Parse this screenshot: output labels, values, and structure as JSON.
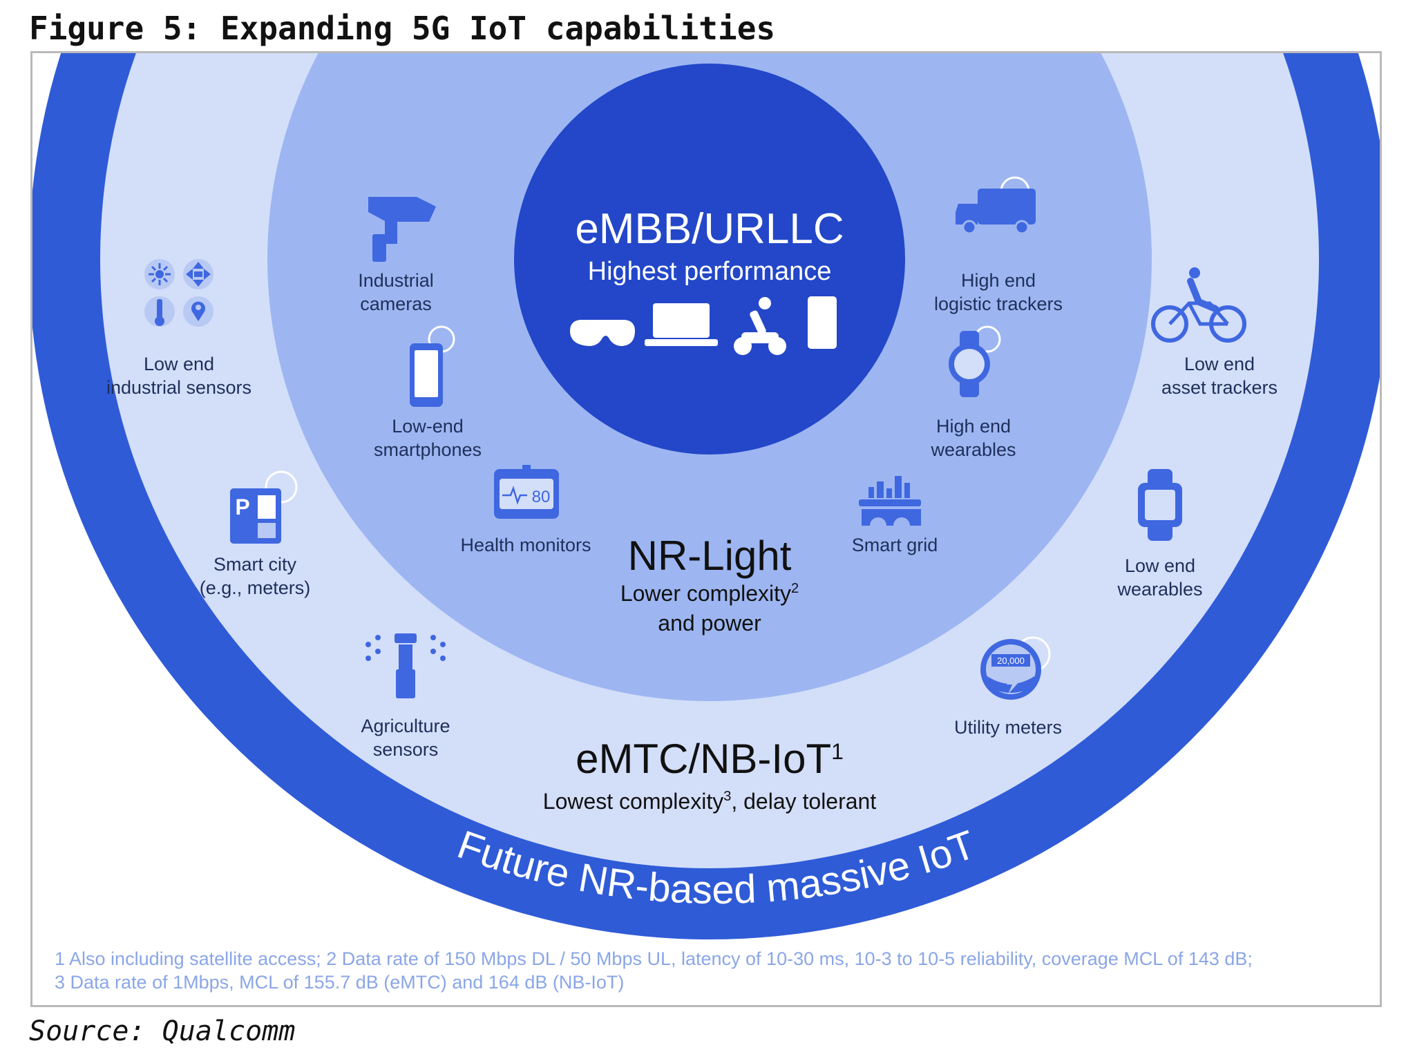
{
  "figure_title": "Figure 5: Expanding 5G IoT capabilities",
  "source": "Source: Qualcomm",
  "colors": {
    "outer_ring": "#2f5bd7",
    "outer_zone": "#d3def9",
    "middle_zone": "#9db6f2",
    "core": "#2347c8",
    "icon": "#3f67e0",
    "footnote": "#8aa6e6"
  },
  "core": {
    "title": "eMBB/URLLC",
    "subtitle": "Highest performance",
    "icons": [
      "vr-glasses-icon",
      "laptop-icon",
      "robot-arm-icon",
      "tablet-icon"
    ]
  },
  "middle": {
    "title": "NR-Light",
    "subtitle_line1": "Lower complexity",
    "subtitle_line1_sup": "2",
    "subtitle_line2": "and power",
    "items": [
      {
        "icon": "security-camera-icon",
        "line1": "Industrial",
        "line2": "cameras"
      },
      {
        "icon": "smartphone-icon",
        "line1": "Low-end",
        "line2": "smartphones"
      },
      {
        "icon": "health-monitor-icon",
        "line1": "Health monitors",
        "line2": "",
        "monitor_reading": "80"
      },
      {
        "icon": "delivery-truck-icon",
        "line1": "High end",
        "line2": "logistic trackers"
      },
      {
        "icon": "smartwatch-icon",
        "line1": "High end",
        "line2": "wearables"
      },
      {
        "icon": "smart-grid-icon",
        "line1": "Smart grid",
        "line2": ""
      }
    ]
  },
  "outer": {
    "title": "eMTC/NB-IoT",
    "title_sup": "1",
    "subtitle_a": "Lowest complexity",
    "subtitle_sup": "3",
    "subtitle_b": ", delay tolerant",
    "items": [
      {
        "icon": "industrial-sensors-icon",
        "line1": "Low end",
        "line2": "industrial sensors"
      },
      {
        "icon": "parking-meter-icon",
        "line1": "Smart city",
        "line2": "(e.g., meters)"
      },
      {
        "icon": "sprinkler-icon",
        "line1": "Agriculture",
        "line2": "sensors"
      },
      {
        "icon": "bicycle-rider-icon",
        "line1": "Low end",
        "line2": "asset trackers"
      },
      {
        "icon": "fitness-band-icon",
        "line1": "Low end",
        "line2": "wearables"
      },
      {
        "icon": "utility-meter-icon",
        "line1": "Utility  meters",
        "line2": "",
        "meter_reading": "20,000"
      }
    ]
  },
  "ring_label": "Future NR-based massive IoT",
  "footnotes": [
    "1 Also including satellite access; 2 Data rate of 150 Mbps DL / 50 Mbps UL, latency of 10-30 ms, 10-3 to 10-5 reliability, coverage MCL of 143 dB;",
    "3 Data rate of 1Mbps, MCL of 155.7 dB (eMTC) and 164 dB (NB-IoT)"
  ]
}
